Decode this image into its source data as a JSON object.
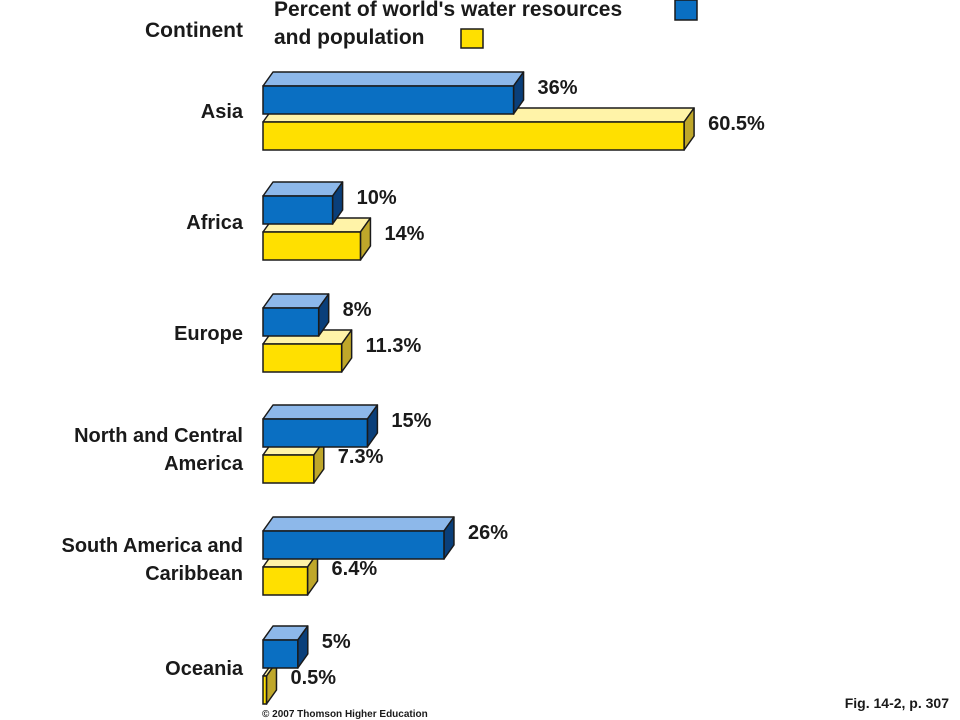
{
  "chart_data": {
    "type": "bar",
    "orientation": "horizontal",
    "style": "3d",
    "category_header": "Continent",
    "categories": [
      "Asia",
      "Africa",
      "Europe",
      "North and Central America",
      "South America and Caribbean",
      "Oceania"
    ],
    "series": [
      {
        "name": "Percent of world's water resources",
        "color": "#0a6fc2",
        "values": [
          36,
          10,
          8,
          15,
          26,
          5
        ],
        "labels": [
          "36%",
          "10%",
          "8%",
          "15%",
          "26%",
          "5%"
        ]
      },
      {
        "name": "and population",
        "color": "#ffe000",
        "values": [
          60.5,
          14,
          11.3,
          7.3,
          6.4,
          0.5
        ],
        "labels": [
          "60.5%",
          "14%",
          "11.3%",
          "7.3%",
          "6.4%",
          "0.5%"
        ]
      }
    ],
    "grid": false
  },
  "footer": {
    "figure_ref": "Fig. 14-2, p. 307",
    "copyright": "© 2007 Thomson Higher Education"
  }
}
